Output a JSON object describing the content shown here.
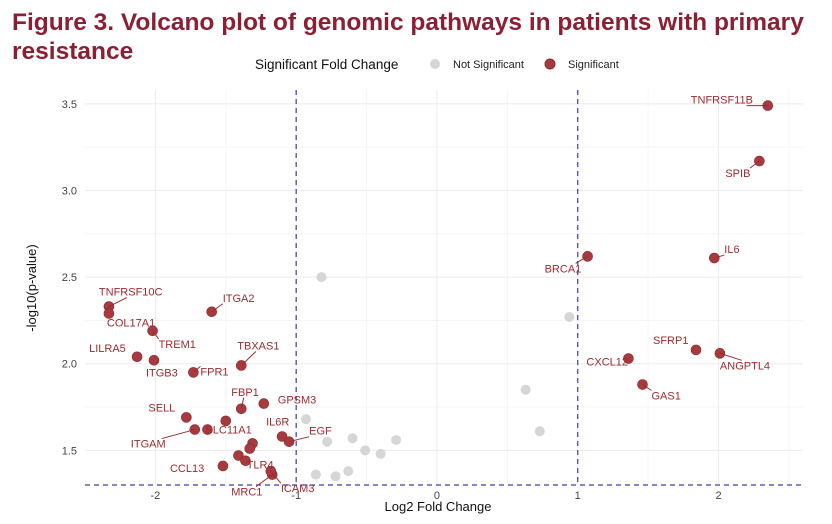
{
  "figure": {
    "title": "Figure 3. Volcano plot of genomic pathways in patients with primary resistance"
  },
  "colors": {
    "title": "#8b1f33",
    "significant": "#a63a3e",
    "significant_stroke": "#8e2a2f",
    "not_significant": "#d6d6d6",
    "label": "#9b2b30",
    "threshold_line": "#3f3fa8",
    "grid": "#ececec"
  },
  "chart_data": {
    "type": "scatter",
    "xlabel": "Log2 Fold Change",
    "ylabel": "-log10(p-value)",
    "xlim": [
      -2.5,
      2.6
    ],
    "ylim": [
      1.3,
      3.58
    ],
    "x_ticks": [
      -2,
      -1,
      0,
      1,
      2
    ],
    "x_tick_labels": [
      "-2",
      "-1",
      "0",
      "1",
      "2"
    ],
    "y_ticks": [
      1.5,
      2.0,
      2.5,
      3.0,
      3.5
    ],
    "y_tick_labels": [
      "1.5",
      "2.0",
      "2.5",
      "3.0",
      "3.5"
    ],
    "grid": true,
    "thresholds": {
      "x": [
        -1,
        1
      ],
      "y": 1.3
    },
    "legend": {
      "title": "Significant Fold Change",
      "position": "top",
      "items": [
        {
          "label": "Not Significant",
          "key": "not_significant"
        },
        {
          "label": "Significant",
          "key": "significant"
        }
      ]
    },
    "series": [
      {
        "name": "Not Significant",
        "points": [
          {
            "x": -0.82,
            "y": 2.5
          },
          {
            "x": -0.93,
            "y": 1.68
          },
          {
            "x": -0.6,
            "y": 1.57
          },
          {
            "x": -0.78,
            "y": 1.55
          },
          {
            "x": -0.29,
            "y": 1.56
          },
          {
            "x": -0.51,
            "y": 1.5
          },
          {
            "x": -0.4,
            "y": 1.48
          },
          {
            "x": -0.63,
            "y": 1.38
          },
          {
            "x": -0.72,
            "y": 1.35
          },
          {
            "x": -0.86,
            "y": 1.36
          },
          {
            "x": 0.63,
            "y": 1.85
          },
          {
            "x": 0.73,
            "y": 1.61
          },
          {
            "x": 0.94,
            "y": 2.27
          }
        ]
      },
      {
        "name": "Significant",
        "points": [
          {
            "x": 2.35,
            "y": 3.49,
            "label": "TNFRSF11B"
          },
          {
            "x": 2.29,
            "y": 3.17,
            "label": "SPIB"
          },
          {
            "x": 1.97,
            "y": 2.61,
            "label": "IL6"
          },
          {
            "x": 1.07,
            "y": 2.62,
            "label": "BRCA1"
          },
          {
            "x": 1.84,
            "y": 2.08,
            "label": "SFRP1"
          },
          {
            "x": 2.01,
            "y": 2.06,
            "label": "ANGPTL4"
          },
          {
            "x": 1.36,
            "y": 2.03,
            "label": "CXCL12"
          },
          {
            "x": 1.46,
            "y": 1.88,
            "label": "GAS1"
          },
          {
            "x": -2.33,
            "y": 2.33,
            "label": "TNFRSF10C"
          },
          {
            "x": -2.33,
            "y": 2.29,
            "label": "COL17A1"
          },
          {
            "x": -1.6,
            "y": 2.3,
            "label": "ITGA2"
          },
          {
            "x": -2.02,
            "y": 2.19,
            "label": "TREM1"
          },
          {
            "x": -2.13,
            "y": 2.04,
            "label": "LILRA5"
          },
          {
            "x": -2.01,
            "y": 2.02,
            "label": "ITGB3"
          },
          {
            "x": -1.73,
            "y": 1.95,
            "label": "FPR1"
          },
          {
            "x": -1.39,
            "y": 1.99,
            "label": "TBXAS1"
          },
          {
            "x": -1.39,
            "y": 1.74,
            "label": "FBP1"
          },
          {
            "x": -1.23,
            "y": 1.77,
            "label": "GPSM3"
          },
          {
            "x": -1.78,
            "y": 1.69,
            "label": "SELL"
          },
          {
            "x": -1.5,
            "y": 1.67,
            "label": ""
          },
          {
            "x": -1.63,
            "y": 1.62,
            "label": "SLC11A1"
          },
          {
            "x": -1.72,
            "y": 1.62,
            "label": "ITGAM"
          },
          {
            "x": -1.1,
            "y": 1.58,
            "label": "IL6R"
          },
          {
            "x": -1.05,
            "y": 1.55,
            "label": "EGF"
          },
          {
            "x": -1.31,
            "y": 1.54,
            "label": ""
          },
          {
            "x": -1.33,
            "y": 1.51,
            "label": "TLR4"
          },
          {
            "x": -1.41,
            "y": 1.47,
            "label": ""
          },
          {
            "x": -1.36,
            "y": 1.44,
            "label": ""
          },
          {
            "x": -1.52,
            "y": 1.41,
            "label": "CCL13"
          },
          {
            "x": -1.17,
            "y": 1.36,
            "label": "MRC1"
          },
          {
            "x": -1.18,
            "y": 1.38,
            "label": "ICAM3"
          }
        ]
      }
    ]
  }
}
